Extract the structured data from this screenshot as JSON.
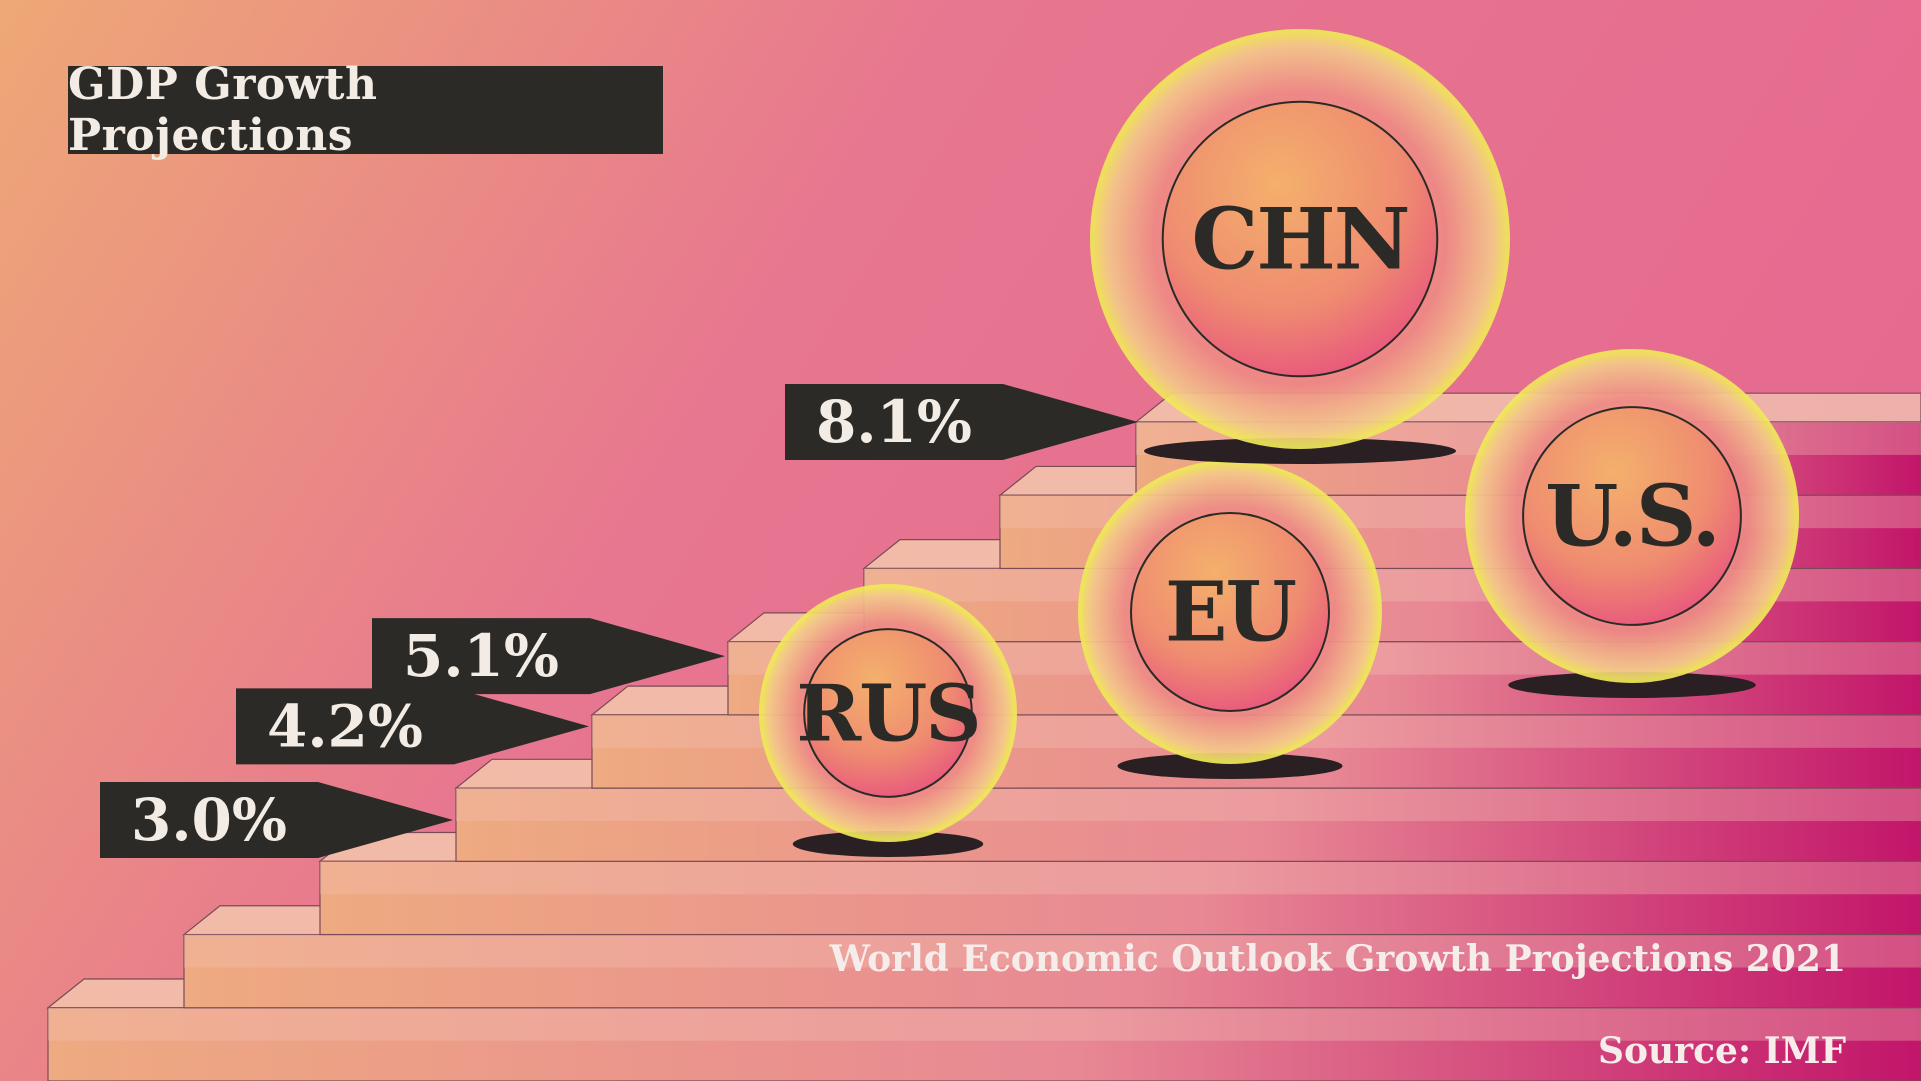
{
  "header": {
    "title": "GDP Growth Projections"
  },
  "footer": {
    "subtitle": "World Economic Outlook Growth Projections 2021",
    "source": "Source: IMF"
  },
  "colors": {
    "background_left": "#eea876",
    "background_right": "#e56a90",
    "label_box": "#2b2a27",
    "label_text": "#f3ece4",
    "stair_top": "#f0b7a9",
    "stair_riser": "#eeaa80",
    "stair_riser_end": "#c2156a",
    "bubble_glow": "#f0e85a",
    "bubble_core": "#f09a6a",
    "bubble_text": "#2b2a27"
  },
  "chart_data": {
    "type": "bar",
    "style": "staircase pictogram with labeled bubbles",
    "title": "GDP Growth Projections",
    "subtitle": "World Economic Outlook Growth Projections 2021",
    "source": "Source: IMF",
    "categories": [
      "RUS",
      "EU",
      "U.S.",
      "CHN"
    ],
    "values": [
      3.0,
      4.2,
      5.1,
      8.1
    ],
    "value_labels": [
      "3.0%",
      "4.2%",
      "5.1%",
      "8.1%"
    ],
    "unit": "%",
    "legend": "none",
    "grid": false
  }
}
